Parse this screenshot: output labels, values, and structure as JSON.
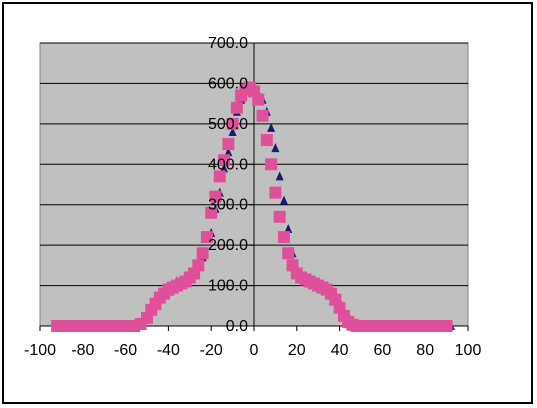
{
  "chart_data": {
    "type": "scatter",
    "title": "",
    "xlabel": "",
    "ylabel": "",
    "xlim": [
      -100,
      100
    ],
    "ylim": [
      0,
      700
    ],
    "x_ticks": [
      -100,
      -80,
      -60,
      -40,
      -20,
      0,
      20,
      40,
      60,
      80,
      100
    ],
    "y_ticks": [
      0,
      100,
      200,
      300,
      400,
      500,
      600,
      700
    ],
    "x_tick_labels": [
      "-100",
      "-80",
      "-60",
      "-40",
      "-20",
      "0",
      "20",
      "40",
      "60",
      "80",
      "100"
    ],
    "y_tick_labels": [
      "0.0",
      "100.0",
      "200.0",
      "300.0",
      "400.0",
      "500.0",
      "600.0",
      "700.0"
    ],
    "grid": true,
    "legend": "none",
    "colors": {
      "plot_background": "#c0c0c0",
      "series_1": "#1a1a6e",
      "series_2": "#e0509a"
    },
    "series": [
      {
        "marker": "triangle",
        "color": "#1a1a6e",
        "x": [
          -92,
          -86,
          -80,
          -74,
          -68,
          -62,
          -56,
          -52,
          -48,
          -44,
          -40,
          -36,
          -32,
          -28,
          -24,
          -20,
          -18,
          -16,
          -14,
          -12,
          -10,
          -8,
          -6,
          -4,
          -2,
          0,
          2,
          4,
          6,
          8,
          10,
          12,
          14,
          16,
          18,
          20,
          24,
          28,
          32,
          36,
          40,
          44,
          48,
          52,
          56,
          62,
          68,
          74,
          80,
          86,
          92
        ],
        "y": [
          0,
          0,
          0,
          0,
          0,
          0,
          0,
          10,
          40,
          70,
          95,
          110,
          120,
          135,
          170,
          230,
          290,
          330,
          390,
          430,
          480,
          530,
          560,
          585,
          590,
          585,
          575,
          560,
          530,
          490,
          440,
          370,
          310,
          240,
          180,
          140,
          120,
          110,
          100,
          90,
          60,
          25,
          5,
          0,
          0,
          0,
          0,
          0,
          0,
          0,
          0
        ]
      },
      {
        "marker": "square",
        "color": "#e0509a",
        "x": [
          -92,
          -88,
          -84,
          -80,
          -76,
          -72,
          -68,
          -64,
          -60,
          -56,
          -53,
          -50,
          -48,
          -46,
          -44,
          -42,
          -40,
          -38,
          -36,
          -34,
          -32,
          -30,
          -28,
          -26,
          -24,
          -22,
          -20,
          -18,
          -16,
          -14,
          -12,
          -10,
          -8,
          -6,
          -4,
          -2,
          0,
          2,
          4,
          6,
          8,
          10,
          12,
          14,
          16,
          18,
          20,
          22,
          24,
          26,
          28,
          30,
          32,
          34,
          36,
          38,
          40,
          42,
          44,
          46,
          48,
          50,
          54,
          58,
          62,
          66,
          70,
          74,
          78,
          82,
          86,
          90
        ],
        "y": [
          0,
          0,
          0,
          0,
          0,
          0,
          0,
          0,
          0,
          0,
          5,
          20,
          40,
          55,
          70,
          80,
          90,
          95,
          100,
          105,
          110,
          120,
          130,
          150,
          180,
          220,
          280,
          320,
          370,
          410,
          450,
          500,
          540,
          570,
          585,
          590,
          580,
          560,
          520,
          460,
          400,
          330,
          270,
          220,
          180,
          150,
          130,
          120,
          115,
          110,
          105,
          100,
          95,
          90,
          80,
          65,
          45,
          25,
          10,
          3,
          0,
          0,
          0,
          0,
          0,
          0,
          0,
          0,
          0,
          0,
          0,
          0
        ]
      }
    ]
  }
}
